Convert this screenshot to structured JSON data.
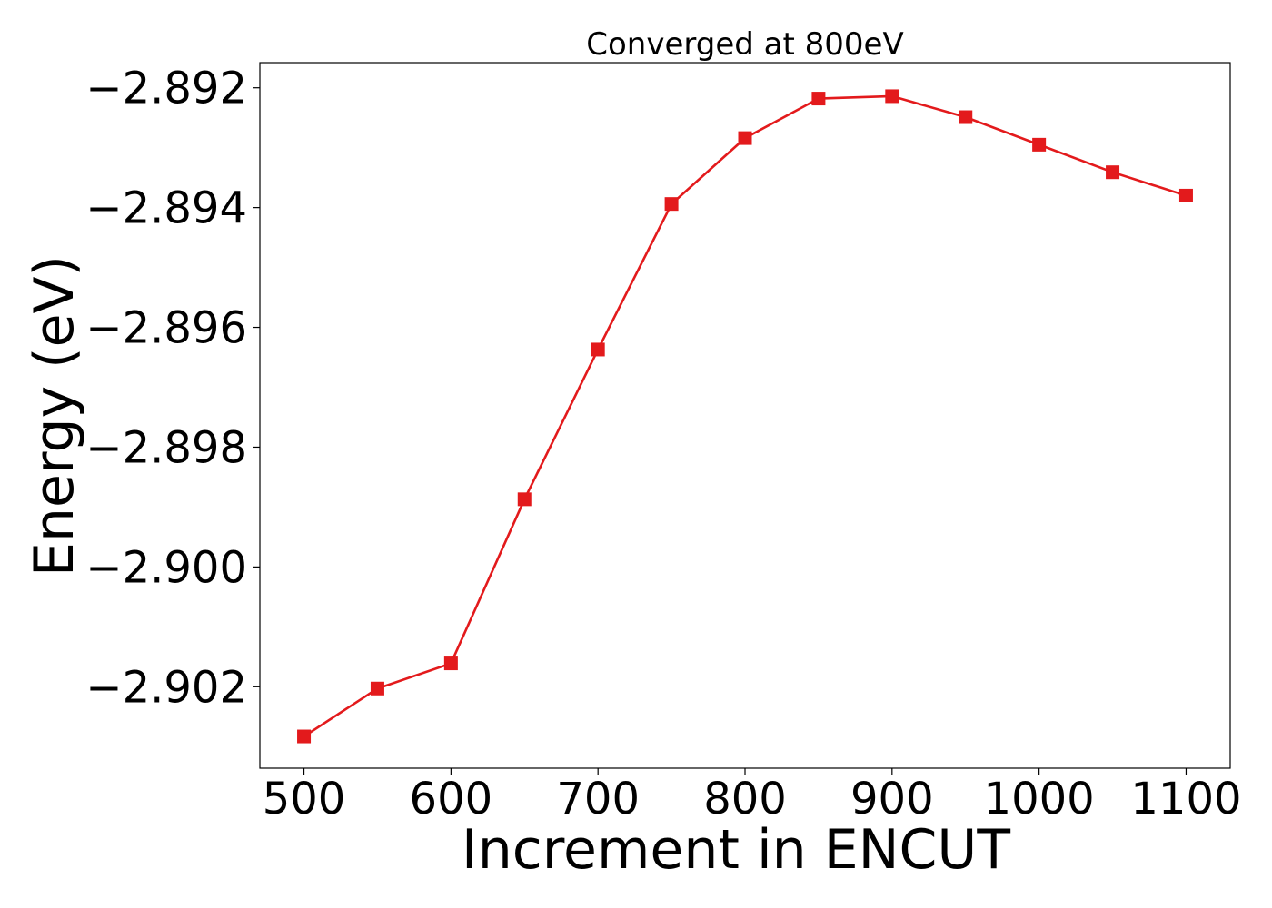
{
  "chart_data": {
    "type": "line",
    "title": "Converged at 800eV",
    "xlabel": "Increment in ENCUT",
    "ylabel": "Energy (eV)",
    "x": [
      500,
      550,
      600,
      650,
      700,
      750,
      800,
      850,
      900,
      950,
      1000,
      1050,
      1100
    ],
    "series": [
      {
        "values": [
          -2.90283,
          -2.90203,
          -2.90161,
          -2.89887,
          -2.89637,
          -2.89394,
          -2.89284,
          -2.89218,
          -2.89214,
          -2.89249,
          -2.89295,
          -2.89341,
          -2.8938
        ],
        "color": "#e31a1c",
        "marker": "square"
      }
    ],
    "xticks": [
      500,
      600,
      700,
      800,
      900,
      1000,
      1100
    ],
    "xtick_labels": [
      "500",
      "600",
      "700",
      "800",
      "900",
      "1000",
      "1100"
    ],
    "yticks": [
      -2.902,
      -2.9,
      -2.898,
      -2.896,
      -2.894,
      -2.892
    ],
    "ytick_labels": [
      "−2.902",
      "−2.900",
      "−2.898",
      "−2.896",
      "−2.894",
      "−2.892"
    ],
    "xlim": [
      470,
      1130
    ],
    "ylim": [
      -2.90336,
      -2.89158
    ],
    "grid": false,
    "legend": "none"
  }
}
